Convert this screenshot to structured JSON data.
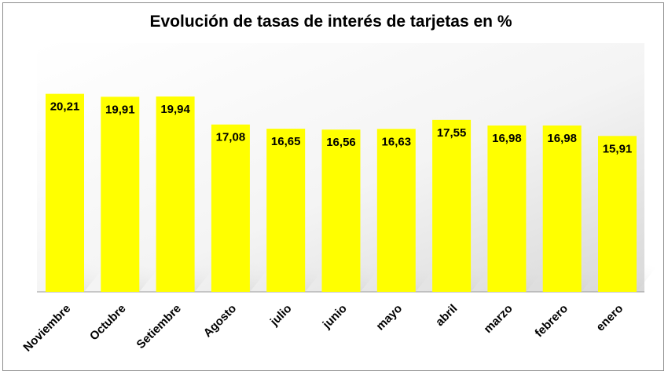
{
  "chart_data": {
    "type": "bar",
    "title": "Evolución de tasas de interés de tarjetas en %",
    "categories": [
      "Noviembre",
      "Octubre",
      "Setiembre",
      "Agosto",
      "julio",
      "junio",
      "mayo",
      "abril",
      "marzo",
      "febrero",
      "enero"
    ],
    "values": [
      20.21,
      19.91,
      19.94,
      17.08,
      16.65,
      16.56,
      16.63,
      17.55,
      16.98,
      16.98,
      15.91
    ],
    "value_labels": [
      "20,21",
      "19,91",
      "19,94",
      "17,08",
      "16,65",
      "16,56",
      "16,63",
      "17,55",
      "16,98",
      "16,98",
      "15,91"
    ],
    "ylim": [
      0,
      20.5
    ],
    "bar_color": "#FFFF00",
    "grid": false,
    "legend": "none"
  }
}
